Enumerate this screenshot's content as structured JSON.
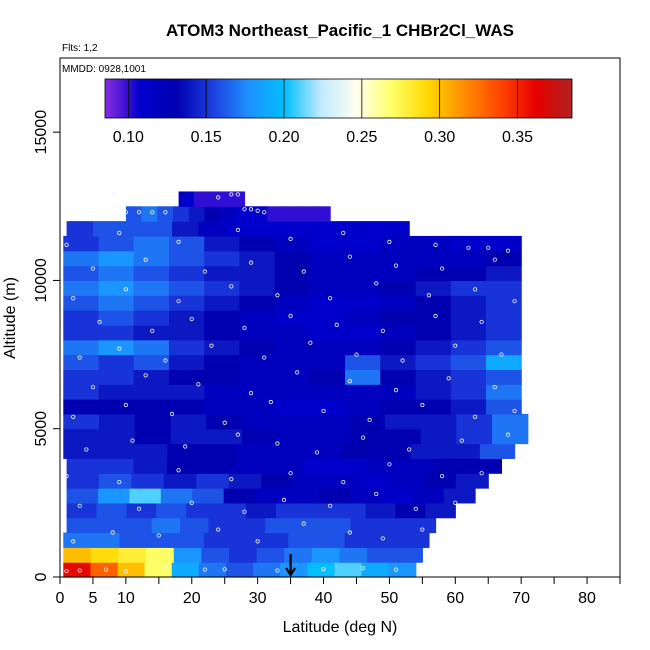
{
  "chart_data": {
    "type": "heatmap",
    "title": "ATOM3 Northeast_Pacific_1 CHBr2Cl_WAS",
    "flights_label": "Flts: 1,2",
    "dates_label": "MMDD: 0928,1001",
    "xlabel": "Latitude (deg N)",
    "ylabel": "Altitude (m)",
    "xlim": [
      0,
      85
    ],
    "ylim": [
      0,
      17500
    ],
    "x_ticks": [
      0,
      5,
      10,
      20,
      30,
      40,
      50,
      60,
      70,
      80
    ],
    "x_minor_ticks": [
      15,
      25,
      35,
      45,
      55,
      65,
      75,
      85
    ],
    "y_ticks": [
      0,
      5000,
      10000,
      15000
    ],
    "colorbar": {
      "range": [
        0.085,
        0.385
      ],
      "ticks": [
        0.1,
        0.15,
        0.2,
        0.25,
        0.3,
        0.35
      ],
      "tick_labels": [
        "0.10",
        "0.15",
        "0.20",
        "0.25",
        "0.30",
        "0.35"
      ],
      "colors": [
        "#8a2be2",
        "#0000cd",
        "#0000b0",
        "#1e3fe0",
        "#1e90ff",
        "#00bfff",
        "#bfe9ff",
        "#fffff0",
        "#ffff66",
        "#ffd700",
        "#ff8c00",
        "#ff4500",
        "#e60000",
        "#b22222"
      ]
    },
    "marker_latitude": 35,
    "altitude_profile": [
      {
        "alt": 250,
        "lat_min": 0.5,
        "lat_max": 54,
        "values": [
          0.36,
          0.33,
          0.3,
          0.27,
          0.19,
          0.17,
          0.16,
          0.17,
          0.18,
          0.2,
          0.21,
          0.19,
          0.18
        ]
      },
      {
        "alt": 750,
        "lat_min": 0.5,
        "lat_max": 55,
        "values": [
          0.3,
          0.29,
          0.28,
          0.27,
          0.18,
          0.16,
          0.15,
          0.16,
          0.17,
          0.18,
          0.17,
          0.16,
          0.16
        ]
      },
      {
        "alt": 1250,
        "lat_min": 0.5,
        "lat_max": 56,
        "values": [
          0.17,
          0.17,
          0.16,
          0.16,
          0.16,
          0.15,
          0.15,
          0.15,
          0.16,
          0.16,
          0.15,
          0.15,
          0.15
        ]
      },
      {
        "alt": 1750,
        "lat_min": 1,
        "lat_max": 57,
        "values": [
          0.16,
          0.16,
          0.16,
          0.17,
          0.16,
          0.15,
          0.15,
          0.16,
          0.16,
          0.16,
          0.15,
          0.15,
          0.15
        ]
      },
      {
        "alt": 2250,
        "lat_min": 1,
        "lat_max": 60,
        "values": [
          0.15,
          0.16,
          0.15,
          0.16,
          0.15,
          0.15,
          0.14,
          0.15,
          0.15,
          0.15,
          0.14,
          0.13,
          0.14
        ]
      },
      {
        "alt": 2750,
        "lat_min": 1,
        "lat_max": 63,
        "values": [
          0.16,
          0.18,
          0.21,
          0.17,
          0.16,
          0.13,
          0.12,
          0.12,
          0.13,
          0.12,
          0.11,
          0.12,
          0.14
        ]
      },
      {
        "alt": 3250,
        "lat_min": 1,
        "lat_max": 65,
        "values": [
          0.15,
          0.16,
          0.15,
          0.14,
          0.15,
          0.14,
          0.13,
          0.12,
          0.12,
          0.11,
          0.12,
          0.13,
          0.14
        ]
      },
      {
        "alt": 3750,
        "lat_min": 1,
        "lat_max": 67,
        "values": [
          0.15,
          0.15,
          0.14,
          0.13,
          0.13,
          0.12,
          0.12,
          0.11,
          0.11,
          0.12,
          0.12,
          0.13,
          0.13
        ]
      },
      {
        "alt": 4250,
        "lat_min": 0.5,
        "lat_max": 69,
        "values": [
          0.14,
          0.14,
          0.14,
          0.13,
          0.13,
          0.12,
          0.12,
          0.12,
          0.13,
          0.13,
          0.14,
          0.14,
          0.16
        ]
      },
      {
        "alt": 4750,
        "lat_min": 0.5,
        "lat_max": 71,
        "values": [
          0.14,
          0.14,
          0.13,
          0.14,
          0.14,
          0.13,
          0.12,
          0.12,
          0.13,
          0.13,
          0.14,
          0.15,
          0.17
        ]
      },
      {
        "alt": 5250,
        "lat_min": 0.5,
        "lat_max": 71,
        "values": [
          0.15,
          0.14,
          0.13,
          0.14,
          0.13,
          0.12,
          0.12,
          0.12,
          0.13,
          0.14,
          0.14,
          0.15,
          0.17
        ]
      },
      {
        "alt": 5750,
        "lat_min": 0.5,
        "lat_max": 70,
        "values": [
          0.13,
          0.13,
          0.13,
          0.13,
          0.12,
          0.12,
          0.11,
          0.11,
          0.12,
          0.13,
          0.13,
          0.14,
          0.16
        ]
      },
      {
        "alt": 6250,
        "lat_min": 0.5,
        "lat_max": 70,
        "values": [
          0.15,
          0.14,
          0.14,
          0.14,
          0.12,
          0.12,
          0.12,
          0.12,
          0.12,
          0.12,
          0.14,
          0.15,
          0.17
        ]
      },
      {
        "alt": 6750,
        "lat_min": 0.5,
        "lat_max": 70,
        "values": [
          0.15,
          0.15,
          0.14,
          0.13,
          0.13,
          0.12,
          0.12,
          0.13,
          0.17,
          0.13,
          0.14,
          0.15,
          0.16
        ]
      },
      {
        "alt": 7250,
        "lat_min": 0.5,
        "lat_max": 70,
        "values": [
          0.16,
          0.15,
          0.16,
          0.14,
          0.13,
          0.12,
          0.12,
          0.12,
          0.16,
          0.14,
          0.15,
          0.16,
          0.19
        ]
      },
      {
        "alt": 7750,
        "lat_min": 0.5,
        "lat_max": 70,
        "values": [
          0.17,
          0.18,
          0.17,
          0.15,
          0.14,
          0.13,
          0.12,
          0.12,
          0.12,
          0.13,
          0.14,
          0.15,
          0.16
        ]
      },
      {
        "alt": 8250,
        "lat_min": 0.5,
        "lat_max": 70,
        "values": [
          0.15,
          0.15,
          0.14,
          0.14,
          0.13,
          0.12,
          0.12,
          0.11,
          0.11,
          0.12,
          0.13,
          0.14,
          0.15
        ]
      },
      {
        "alt": 8750,
        "lat_min": 0.5,
        "lat_max": 70,
        "values": [
          0.15,
          0.16,
          0.15,
          0.14,
          0.13,
          0.12,
          0.11,
          0.11,
          0.12,
          0.13,
          0.13,
          0.14,
          0.15
        ]
      },
      {
        "alt": 9250,
        "lat_min": 0.5,
        "lat_max": 70,
        "values": [
          0.16,
          0.17,
          0.16,
          0.15,
          0.14,
          0.13,
          0.12,
          0.11,
          0.11,
          0.12,
          0.13,
          0.14,
          0.15
        ]
      },
      {
        "alt": 9750,
        "lat_min": 0.5,
        "lat_max": 70,
        "values": [
          0.17,
          0.18,
          0.17,
          0.16,
          0.15,
          0.14,
          0.13,
          0.12,
          0.12,
          0.13,
          0.14,
          0.15,
          0.15
        ]
      },
      {
        "alt": 10250,
        "lat_min": 0.5,
        "lat_max": 70,
        "values": [
          0.16,
          0.17,
          0.16,
          0.15,
          0.14,
          0.14,
          0.13,
          0.12,
          0.12,
          0.12,
          0.13,
          0.13,
          0.14
        ]
      },
      {
        "alt": 10750,
        "lat_min": 0.5,
        "lat_max": 70,
        "values": [
          0.17,
          0.18,
          0.17,
          0.16,
          0.15,
          0.14,
          0.13,
          0.12,
          0.12,
          0.12,
          0.12,
          0.12,
          0.13
        ]
      },
      {
        "alt": 11250,
        "lat_min": 0.5,
        "lat_max": 70,
        "values": [
          0.15,
          0.16,
          0.17,
          0.16,
          0.14,
          0.13,
          0.12,
          0.11,
          0.11,
          0.12,
          0.12,
          0.11,
          0.11
        ]
      },
      {
        "alt": 11750,
        "lat_min": 1,
        "lat_max": 53,
        "values": [
          0.15,
          0.16,
          0.16,
          0.16,
          0.14,
          0.12,
          0.11,
          0.11,
          0.11,
          0.11,
          0.11,
          0.11,
          0.11
        ]
      },
      {
        "alt": 12250,
        "lat_min": 10,
        "lat_max": 41,
        "values": [
          0.16,
          0.17,
          0.16,
          0.15,
          0.14,
          0.13,
          0.12,
          0.11,
          0.11,
          0.1,
          0.1,
          0.1,
          0.1
        ]
      },
      {
        "alt": 12750,
        "lat_min": 18,
        "lat_max": 28,
        "values": [
          0.12,
          0.11,
          0.11,
          0.1,
          0.1,
          0.1,
          0.1,
          0.1,
          0.1,
          0.1,
          0.1,
          0.1,
          0.1
        ]
      }
    ],
    "sample_points": [
      [
        1,
        200
      ],
      [
        3,
        220
      ],
      [
        7,
        250
      ],
      [
        10,
        180
      ],
      [
        16,
        300
      ],
      [
        22,
        250
      ],
      [
        25,
        260
      ],
      [
        33,
        220
      ],
      [
        40,
        260
      ],
      [
        46,
        300
      ],
      [
        51,
        250
      ],
      [
        55,
        280
      ],
      [
        2,
        1200
      ],
      [
        8,
        1500
      ],
      [
        15,
        1400
      ],
      [
        24,
        1600
      ],
      [
        30,
        1200
      ],
      [
        37,
        1800
      ],
      [
        44,
        1500
      ],
      [
        49,
        1300
      ],
      [
        55,
        1600
      ],
      [
        3,
        2400
      ],
      [
        12,
        2300
      ],
      [
        20,
        2500
      ],
      [
        28,
        2200
      ],
      [
        34,
        2600
      ],
      [
        41,
        2400
      ],
      [
        48,
        2800
      ],
      [
        54,
        2300
      ],
      [
        60,
        2500
      ],
      [
        1,
        3400
      ],
      [
        9,
        3200
      ],
      [
        18,
        3600
      ],
      [
        26,
        3300
      ],
      [
        35,
        3500
      ],
      [
        43,
        3200
      ],
      [
        50,
        3800
      ],
      [
        58,
        3400
      ],
      [
        64,
        3500
      ],
      [
        4,
        4300
      ],
      [
        11,
        4600
      ],
      [
        19,
        4400
      ],
      [
        27,
        4800
      ],
      [
        33,
        4500
      ],
      [
        39,
        4200
      ],
      [
        46,
        4700
      ],
      [
        53,
        4300
      ],
      [
        61,
        4600
      ],
      [
        68,
        4800
      ],
      [
        2,
        5400
      ],
      [
        10,
        5800
      ],
      [
        17,
        5500
      ],
      [
        25,
        5200
      ],
      [
        32,
        5900
      ],
      [
        40,
        5600
      ],
      [
        47,
        5300
      ],
      [
        55,
        5800
      ],
      [
        63,
        5400
      ],
      [
        69,
        5600
      ],
      [
        5,
        6400
      ],
      [
        13,
        6800
      ],
      [
        21,
        6500
      ],
      [
        29,
        6200
      ],
      [
        36,
        6900
      ],
      [
        44,
        6600
      ],
      [
        51,
        6300
      ],
      [
        59,
        6700
      ],
      [
        66,
        6400
      ],
      [
        3,
        7400
      ],
      [
        9,
        7700
      ],
      [
        16,
        7300
      ],
      [
        23,
        7800
      ],
      [
        31,
        7400
      ],
      [
        38,
        7900
      ],
      [
        45,
        7500
      ],
      [
        52,
        7300
      ],
      [
        60,
        7800
      ],
      [
        67,
        7500
      ],
      [
        6,
        8600
      ],
      [
        14,
        8300
      ],
      [
        20,
        8700
      ],
      [
        28,
        8400
      ],
      [
        35,
        8800
      ],
      [
        42,
        8500
      ],
      [
        49,
        8300
      ],
      [
        57,
        8800
      ],
      [
        64,
        8600
      ],
      [
        2,
        9400
      ],
      [
        10,
        9700
      ],
      [
        18,
        9300
      ],
      [
        26,
        9800
      ],
      [
        33,
        9500
      ],
      [
        41,
        9400
      ],
      [
        48,
        9900
      ],
      [
        56,
        9500
      ],
      [
        63,
        9700
      ],
      [
        69,
        9300
      ],
      [
        5,
        10400
      ],
      [
        13,
        10700
      ],
      [
        22,
        10300
      ],
      [
        29,
        10600
      ],
      [
        37,
        10300
      ],
      [
        44,
        10800
      ],
      [
        51,
        10500
      ],
      [
        58,
        10400
      ],
      [
        66,
        10700
      ],
      [
        1,
        11200
      ],
      [
        9,
        11600
      ],
      [
        18,
        11300
      ],
      [
        27,
        11700
      ],
      [
        35,
        11400
      ],
      [
        43,
        11600
      ],
      [
        50,
        11300
      ],
      [
        57,
        11200
      ],
      [
        62,
        11100
      ],
      [
        65,
        11100
      ],
      [
        68,
        11000
      ],
      [
        10,
        12300
      ],
      [
        12,
        12300
      ],
      [
        14,
        12300
      ],
      [
        16,
        12300
      ],
      [
        28,
        12400
      ],
      [
        29,
        12400
      ],
      [
        30,
        12350
      ],
      [
        31,
        12300
      ],
      [
        24,
        12800
      ],
      [
        26,
        12900
      ],
      [
        27,
        12900
      ]
    ]
  }
}
